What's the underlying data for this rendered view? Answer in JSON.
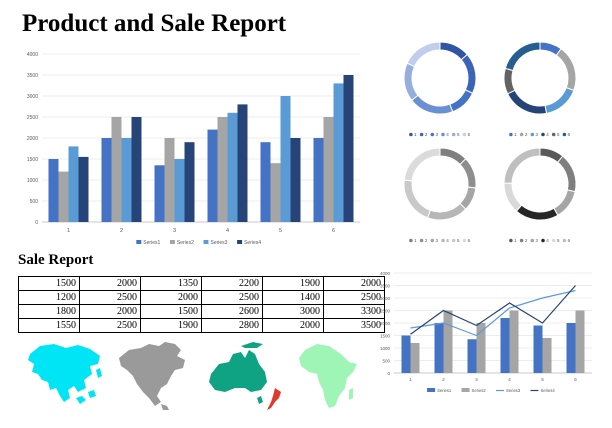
{
  "title": "Product and Sale Report",
  "sale_report": {
    "title": "Sale Report",
    "rows": [
      [
        "1500",
        "2000",
        "1350",
        "2200",
        "1900",
        "2000"
      ],
      [
        "1200",
        "2500",
        "2000",
        "2500",
        "1400",
        "2500"
      ],
      [
        "1800",
        "2000",
        "1500",
        "2600",
        "3000",
        "3300"
      ],
      [
        "1550",
        "2500",
        "1900",
        "2800",
        "2000",
        "3500"
      ]
    ]
  },
  "colors": {
    "series1": "#4472C4",
    "series2": "#A5A5A5",
    "series3": "#5B9BD5",
    "series4": "#264478",
    "asia": "#00E5F5",
    "north_america": "#9A9A9A",
    "oceania": "#10A383",
    "africa": "#9EF5B5"
  },
  "maps": [
    {
      "name": "asia-map",
      "icon": "asia-continent-silhouette"
    },
    {
      "name": "north-america-map",
      "icon": "north-america-continent-silhouette"
    },
    {
      "name": "oceania-map",
      "icon": "australia-continent-silhouette"
    },
    {
      "name": "africa-map",
      "icon": "africa-continent-silhouette"
    }
  ],
  "chart_data": [
    {
      "id": "main-bar",
      "type": "bar",
      "categories": [
        "1",
        "2",
        "3",
        "4",
        "5",
        "6"
      ],
      "series": [
        {
          "name": "Series1",
          "values": [
            1500,
            2000,
            1350,
            2200,
            1900,
            2000
          ]
        },
        {
          "name": "Series2",
          "values": [
            1200,
            2500,
            2000,
            2500,
            1400,
            2500
          ]
        },
        {
          "name": "Series3",
          "values": [
            1800,
            2000,
            1500,
            2600,
            3000,
            3300
          ]
        },
        {
          "name": "Series4",
          "values": [
            1550,
            2500,
            1900,
            2800,
            2000,
            3500
          ]
        }
      ],
      "yticks": [
        "0",
        "500",
        "1000",
        "1500",
        "2000",
        "2500",
        "3000",
        "3500",
        "4000"
      ],
      "ylim": [
        0,
        4000
      ],
      "grid": true,
      "legend": "bottom"
    },
    {
      "id": "donut-1",
      "type": "pie",
      "donut": true,
      "labels": [
        "1",
        "2",
        "3",
        "4",
        "5",
        "6"
      ],
      "values": [
        1500,
        2000,
        1350,
        2200,
        1900,
        2000
      ],
      "colors": [
        "#2F55A4",
        "#3B63B8",
        "#4472C4",
        "#6A8FD2",
        "#95AEDE",
        "#C0CEEB"
      ],
      "legend": "bottom"
    },
    {
      "id": "donut-2",
      "type": "pie",
      "donut": true,
      "labels": [
        "1",
        "2",
        "3",
        "4",
        "5",
        "6"
      ],
      "values": [
        1200,
        2500,
        2000,
        2500,
        1400,
        2500
      ],
      "colors": [
        "#4472C4",
        "#A5A5A5",
        "#5B9BD5",
        "#264478",
        "#636363",
        "#255E91"
      ],
      "legend": "bottom"
    },
    {
      "id": "donut-3",
      "type": "pie",
      "donut": true,
      "labels": [
        "1",
        "2",
        "3",
        "4",
        "5",
        "6"
      ],
      "values": [
        1800,
        2000,
        1500,
        2600,
        3000,
        3300
      ],
      "colors": [
        "#7F7F7F",
        "#8E8E8E",
        "#A5A5A5",
        "#B7B7B7",
        "#C9C9C9",
        "#DBDBDB"
      ],
      "legend": "bottom"
    },
    {
      "id": "donut-4",
      "type": "pie",
      "donut": true,
      "labels": [
        "1",
        "2",
        "3",
        "4",
        "5",
        "6"
      ],
      "values": [
        1550,
        2500,
        1900,
        2800,
        2000,
        3500
      ],
      "colors": [
        "#595959",
        "#7F7F7F",
        "#A5A5A5",
        "#262626",
        "#D9D9D9",
        "#BFBFBF"
      ],
      "legend": "bottom"
    },
    {
      "id": "combo",
      "type": "bar",
      "categories": [
        "1",
        "2",
        "3",
        "4",
        "5",
        "6"
      ],
      "series": [
        {
          "name": "Series1",
          "render": "bar",
          "values": [
            1500,
            2000,
            1350,
            2200,
            1900,
            2000
          ]
        },
        {
          "name": "Series2",
          "render": "bar",
          "values": [
            1200,
            2500,
            2000,
            2500,
            1400,
            2500
          ]
        },
        {
          "name": "Series3",
          "render": "line",
          "values": [
            1800,
            2000,
            1500,
            2600,
            3000,
            3300
          ]
        },
        {
          "name": "Series4",
          "render": "line",
          "values": [
            1550,
            2500,
            1900,
            2800,
            2000,
            3500
          ]
        }
      ],
      "yticks": [
        "0",
        "500",
        "1000",
        "1500",
        "2000",
        "2500",
        "3000",
        "3500",
        "4000"
      ],
      "ylim": [
        0,
        4000
      ],
      "grid": true,
      "legend": "bottom"
    }
  ]
}
